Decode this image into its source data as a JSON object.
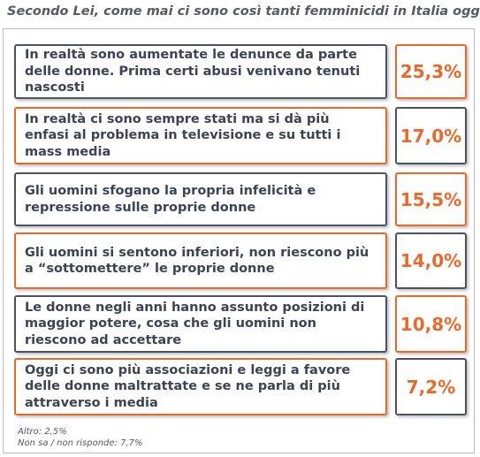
{
  "header": {
    "title": "Secondo Lei, come mai ci sono così tanti femminicidi in Italia oggi?"
  },
  "items": [
    {
      "text": "In realtà sono aumentate le denunce da parte delle donne. Prima certi abusi venivano tenuti nascosti",
      "value": "25,3%"
    },
    {
      "text": "In realtà ci sono sempre stati ma si dà più enfasi al problema in televisione e su tutti i mass media",
      "value": "17,0%"
    },
    {
      "text": "Gli uomini sfogano la propria infelicità e repressione sulle proprie donne",
      "value": "15,5%"
    },
    {
      "text": "Gli uomini si sentono inferiori, non riescono più a “sottomettere” le proprie donne",
      "value": "14,0%"
    },
    {
      "text": "Le donne negli anni hanno assunto posizioni di maggior potere, cosa che gli uomini non riescono ad accettare",
      "value": "10,8%"
    },
    {
      "text": "Oggi ci sono più associazioni e leggi a favore delle donne maltrattate e se ne parla di più attraverso i media",
      "value": "7,2%"
    }
  ],
  "footer": {
    "lines": [
      "Altro: 2,5%",
      "Non sa / non risponde: 7,7%"
    ]
  }
}
